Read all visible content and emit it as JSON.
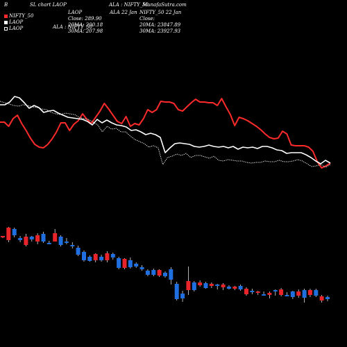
{
  "header": {
    "corner_left": "B",
    "chart_title": "SL chart LAOP",
    "right_title": "ALA : NIFTY_50",
    "site": "MunafaSutra.com",
    "legend_items": [
      {
        "label": "NIFTY_50",
        "color": "#ff2b2b"
      },
      {
        "label": "LAOP",
        "color": "#ffffff"
      },
      {
        "label": "LAOP",
        "color": "#ffffff"
      }
    ],
    "stats_left": {
      "name": "LAOP",
      "close": "Close: 289.90",
      "ma20": "20MA: 200.18",
      "ma30": "30MA: 207.98"
    },
    "stats_mid": {
      "label_top": "ALA 22 Jan",
      "label_bottom": "ALA : NIFTY_50"
    },
    "stats_right": {
      "name": "NIFTY_50 22 Jan",
      "close": "Close:",
      "ma20": "20MA: 23847.89",
      "ma30": "30MA: 23927.93"
    }
  },
  "chart_data": {
    "type": "line",
    "series": [
      {
        "name": "NIFTY_50",
        "color": "#ff2b2b",
        "values": [
          176,
          176,
          182,
          171,
          166,
          178,
          188,
          199,
          208,
          212,
          213,
          208,
          200,
          190,
          177,
          177,
          188,
          179,
          174,
          164,
          172,
          178,
          169,
          160,
          149,
          157,
          166,
          175,
          178,
          168,
          182,
          178,
          180,
          171,
          158,
          162,
          158,
          146,
          147,
          147,
          149,
          158,
          160,
          154,
          148,
          143,
          147,
          147,
          148,
          148,
          152,
          142,
          154,
          165,
          181,
          169,
          171,
          174,
          178,
          182,
          187,
          193,
          198,
          200,
          199,
          189,
          193,
          209,
          210,
          210,
          210,
          212,
          218,
          233,
          242,
          239,
          235
        ]
      },
      {
        "name": "LAOP",
        "color": "#ffffff",
        "values": [
          151,
          151,
          147,
          139,
          141,
          148,
          156,
          152,
          155,
          162,
          160,
          159,
          163,
          166,
          169,
          170,
          171,
          172,
          175,
          180,
          172,
          177,
          173,
          177,
          180,
          181,
          183,
          188,
          187,
          190,
          194,
          192,
          194,
          198,
          220,
          213,
          207,
          206,
          207,
          208,
          211,
          212,
          211,
          209,
          211,
          212,
          211,
          213,
          211,
          215,
          212,
          213,
          212,
          214,
          211,
          211,
          213,
          216,
          217,
          221,
          220,
          220,
          220,
          223,
          227,
          232,
          236,
          231,
          235
        ]
      },
      {
        "name": "LAOP",
        "color": "#ffffff",
        "style": "dotted",
        "values": [
          146,
          148,
          150,
          152,
          153,
          151,
          152,
          154,
          155,
          157,
          158,
          162,
          164,
          165,
          163,
          164,
          165,
          169,
          171,
          172,
          176,
          180,
          190,
          182,
          186,
          185,
          190,
          190,
          196,
          201,
          204,
          207,
          212,
          210,
          213,
          237,
          227,
          225,
          222,
          224,
          221,
          227,
          224,
          224,
          226,
          228,
          225,
          231,
          232,
          230,
          231,
          232,
          232,
          234,
          235,
          234,
          234,
          232,
          233,
          233,
          231,
          233,
          233,
          232,
          230,
          232,
          236,
          240,
          239,
          237,
          241,
          237
        ]
      }
    ],
    "candles": [
      [
        0,
        342,
        340,
        343,
        340
      ],
      [
        0,
        346,
        328,
        349,
        327
      ],
      [
        1,
        330,
        339,
        342,
        328
      ],
      [
        1,
        343,
        346,
        349,
        340
      ],
      [
        0,
        353,
        341,
        355,
        337
      ],
      [
        1,
        341,
        345,
        348,
        340
      ],
      [
        0,
        348,
        339,
        352,
        336
      ],
      [
        1,
        337,
        348,
        350,
        334
      ],
      [
        1,
        350,
        351,
        352,
        347
      ],
      [
        0,
        348,
        336,
        348,
        330
      ],
      [
        1,
        341,
        353,
        355,
        339
      ],
      [
        1,
        348,
        350,
        352,
        343
      ],
      [
        1,
        353,
        355,
        358,
        349
      ],
      [
        1,
        357,
        367,
        369,
        354
      ],
      [
        1,
        363,
        375,
        377,
        361
      ],
      [
        1,
        370,
        376,
        377,
        368
      ],
      [
        0,
        375,
        366,
        378,
        365
      ],
      [
        1,
        370,
        375,
        377,
        367
      ],
      [
        0,
        375,
        365,
        378,
        362
      ],
      [
        1,
        366,
        371,
        374,
        364
      ],
      [
        1,
        372,
        386,
        388,
        370
      ],
      [
        0,
        386,
        373,
        388,
        372
      ],
      [
        1,
        375,
        385,
        387,
        371
      ],
      [
        1,
        380,
        384,
        386,
        378
      ],
      [
        1,
        385,
        388,
        390,
        382
      ],
      [
        1,
        390,
        396,
        398,
        388
      ],
      [
        1,
        389,
        396,
        398,
        387
      ],
      [
        0,
        397,
        389,
        399,
        388
      ],
      [
        1,
        393,
        398,
        400,
        391
      ],
      [
        1,
        388,
        403,
        410,
        385
      ],
      [
        1,
        409,
        431,
        433,
        406
      ],
      [
        1,
        430,
        423,
        435,
        419
      ],
      [
        0,
        405,
        418,
        425,
        384
      ],
      [
        1,
        418,
        407,
        420,
        405
      ],
      [
        0,
        407,
        411,
        413,
        404
      ],
      [
        1,
        408,
        415,
        416,
        406
      ],
      [
        0,
        412,
        409,
        415,
        407
      ],
      [
        1,
        410,
        411,
        417,
        409
      ],
      [
        0,
        414,
        410,
        418,
        408
      ],
      [
        1,
        413,
        416,
        417,
        411
      ],
      [
        0,
        416,
        413,
        418,
        412
      ],
      [
        1,
        412,
        417,
        419,
        410
      ],
      [
        0,
        416,
        424,
        426,
        414
      ],
      [
        1,
        419,
        420,
        424,
        416
      ],
      [
        0,
        422,
        420,
        425,
        419
      ],
      [
        1,
        425,
        424,
        426,
        420
      ],
      [
        0,
        422,
        425,
        430,
        420
      ],
      [
        1,
        420,
        418,
        426,
        417
      ],
      [
        0,
        417,
        425,
        427,
        415
      ],
      [
        1,
        425,
        425,
        427,
        421
      ],
      [
        1,
        420,
        428,
        431,
        419
      ],
      [
        0,
        426,
        420,
        429,
        417
      ],
      [
        1,
        418,
        429,
        436,
        416
      ],
      [
        0,
        425,
        418,
        428,
        416
      ],
      [
        1,
        418,
        426,
        428,
        416
      ],
      [
        0,
        427,
        433,
        436,
        425
      ],
      [
        1,
        428,
        431,
        434,
        426
      ]
    ]
  }
}
